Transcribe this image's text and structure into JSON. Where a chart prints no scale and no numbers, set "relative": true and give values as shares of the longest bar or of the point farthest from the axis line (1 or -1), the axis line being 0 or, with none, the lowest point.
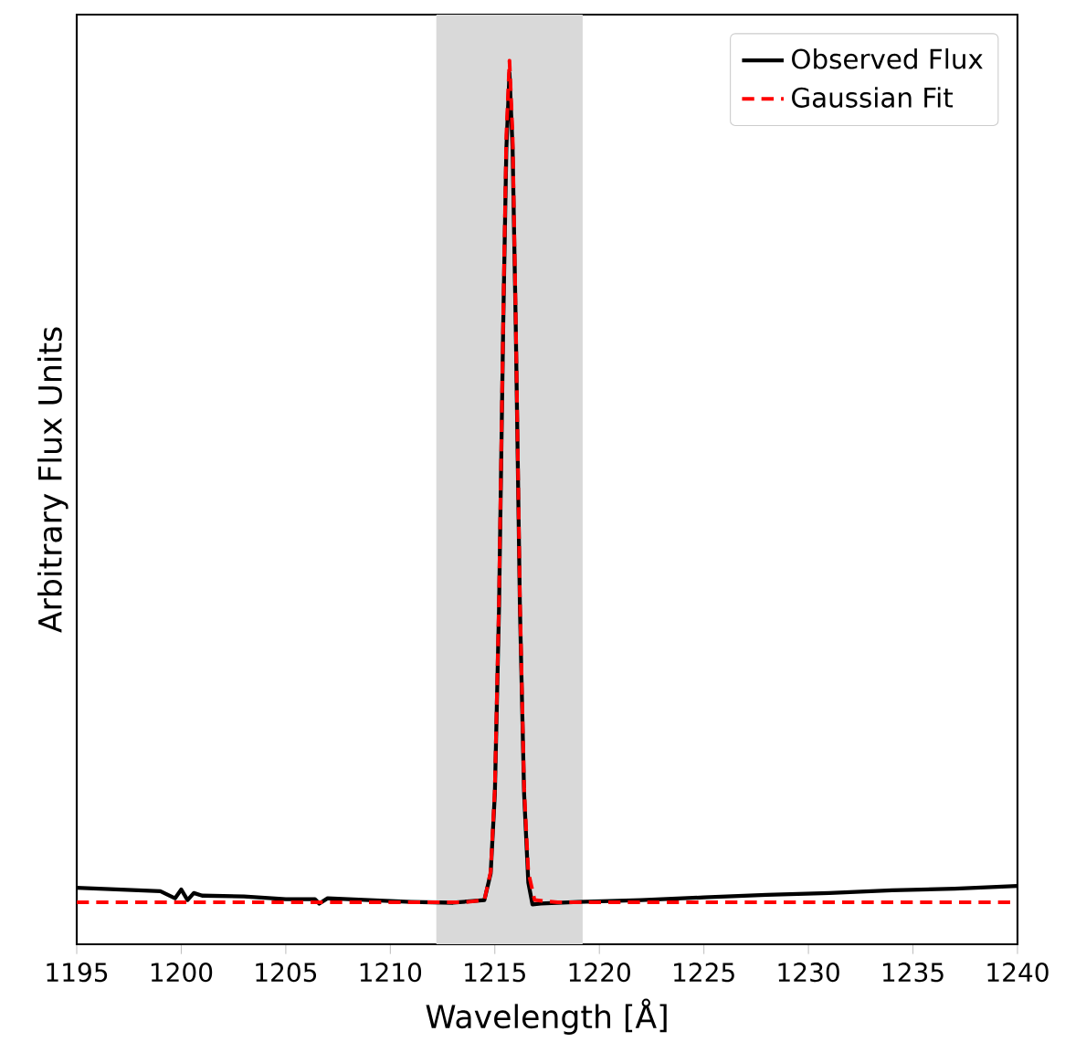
{
  "chart_data": {
    "type": "line",
    "relative": true,
    "xlabel": "Wavelength [Å]",
    "ylabel": "Arbitrary Flux Units",
    "xlim": [
      1195,
      1240
    ],
    "xticks": [
      1195,
      1200,
      1205,
      1210,
      1215,
      1220,
      1225,
      1230,
      1235,
      1240
    ],
    "legend": "top right",
    "marker": "none",
    "bands": [
      {
        "axis": "x",
        "from": 1212.2,
        "to": 1219.2,
        "color": "#d9d9d9"
      }
    ],
    "series": [
      {
        "name": "Observed Flux",
        "color": "#000000",
        "line_style": "solid",
        "x": [
          1195,
          1197,
          1199,
          1199.7,
          1200.0,
          1200.3,
          1200.6,
          1201,
          1203,
          1205,
          1206.4,
          1206.6,
          1207,
          1209,
          1211,
          1213,
          1214.5,
          1214.8,
          1215.0,
          1215.2,
          1215.4,
          1215.55,
          1215.7,
          1215.85,
          1216.0,
          1216.2,
          1216.4,
          1216.6,
          1216.8,
          1217.2,
          1219,
          1222,
          1225,
          1228,
          1231,
          1234,
          1237,
          1240
        ],
        "values": [
          0.064,
          0.062,
          0.06,
          0.052,
          0.062,
          0.05,
          0.058,
          0.055,
          0.054,
          0.051,
          0.051,
          0.046,
          0.052,
          0.05,
          0.048,
          0.047,
          0.05,
          0.08,
          0.17,
          0.38,
          0.7,
          0.9,
          0.986,
          0.9,
          0.7,
          0.38,
          0.17,
          0.07,
          0.045,
          0.046,
          0.048,
          0.05,
          0.053,
          0.056,
          0.058,
          0.061,
          0.063,
          0.066
        ]
      },
      {
        "name": "Gaussian Fit",
        "color": "#ff0000",
        "line_style": "dashed",
        "x": [
          1195,
          1213.5,
          1214.5,
          1214.8,
          1215.0,
          1215.2,
          1215.4,
          1215.55,
          1215.7,
          1215.85,
          1216.0,
          1216.2,
          1216.4,
          1216.6,
          1216.9,
          1218,
          1240
        ],
        "values": [
          0.0475,
          0.0475,
          0.05,
          0.082,
          0.176,
          0.391,
          0.708,
          0.916,
          1,
          0.916,
          0.708,
          0.391,
          0.176,
          0.082,
          0.05,
          0.0475,
          0.0475
        ]
      }
    ]
  }
}
